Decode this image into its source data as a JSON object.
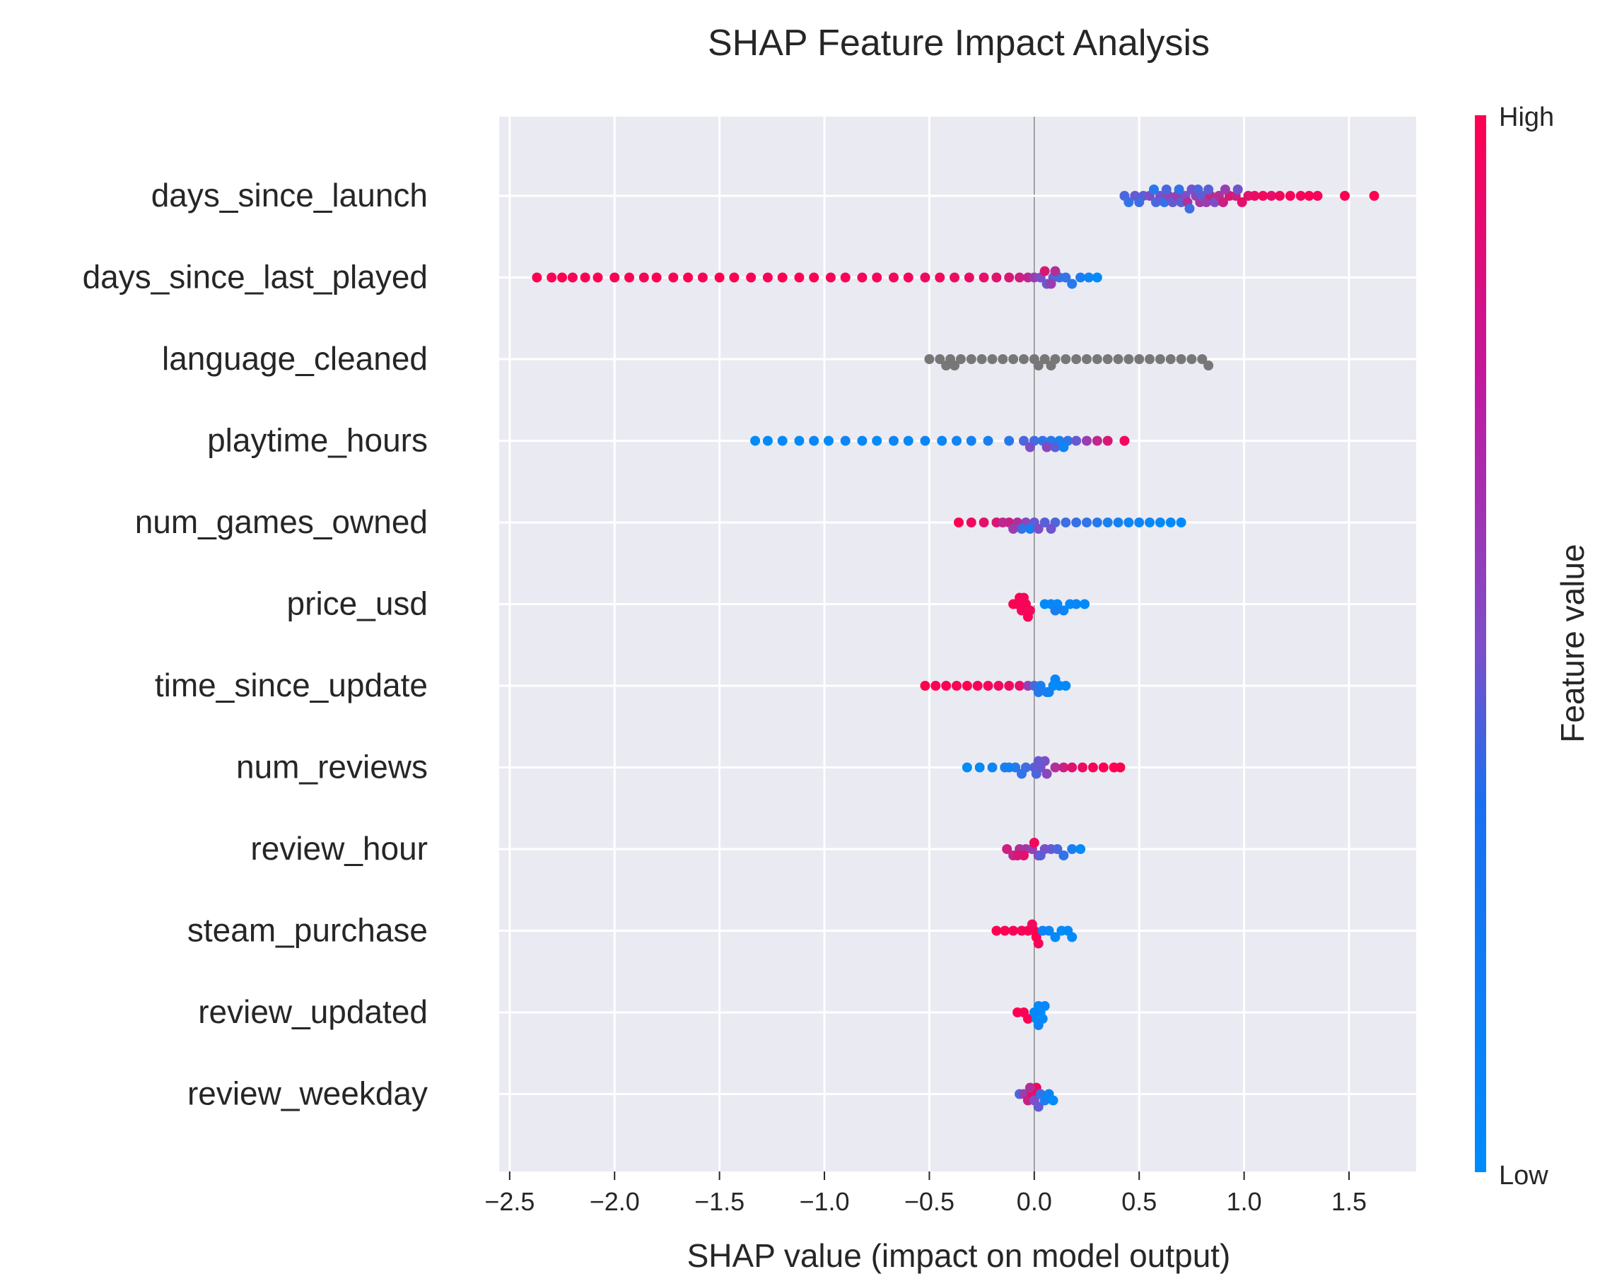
{
  "chart_data": {
    "type": "scatter",
    "subtype": "shap-beeswarm",
    "title": "SHAP Feature Impact Analysis",
    "xlabel": "SHAP value (impact on model output)",
    "xlim": [
      -2.55,
      1.82
    ],
    "xticks": [
      -2.5,
      -2.0,
      -1.5,
      -1.0,
      -0.5,
      0.0,
      0.5,
      1.0,
      1.5
    ],
    "xtick_labels": [
      "−2.5",
      "−2.0",
      "−1.5",
      "−1.0",
      "−0.5",
      "0.0",
      "0.5",
      "1.0",
      "1.5"
    ],
    "grid": true,
    "colorbar": {
      "label": "Feature value",
      "high_label": "High",
      "low_label": "Low",
      "low_color": "#008bfb",
      "mid_color": "#7e4ec8",
      "high_color": "#ff0051"
    },
    "missing_value_color": "#777777",
    "features": [
      {
        "name": "days_since_launch",
        "points": [
          [
            0.43,
            0.3
          ],
          [
            0.48,
            0.4
          ],
          [
            0.52,
            0.35
          ],
          [
            0.55,
            0.5
          ],
          [
            0.58,
            0.3
          ],
          [
            0.6,
            0.45
          ],
          [
            0.62,
            0.2
          ],
          [
            0.64,
            0.55
          ],
          [
            0.66,
            0.4
          ],
          [
            0.68,
            0.6
          ],
          [
            0.7,
            0.35
          ],
          [
            0.72,
            0.5
          ],
          [
            0.73,
            0.7
          ],
          [
            0.75,
            0.45
          ],
          [
            0.77,
            0.55
          ],
          [
            0.79,
            0.65
          ],
          [
            0.8,
            0.4
          ],
          [
            0.82,
            0.6
          ],
          [
            0.84,
            0.75
          ],
          [
            0.86,
            0.5
          ],
          [
            0.88,
            0.7
          ],
          [
            0.9,
            0.8
          ],
          [
            0.93,
            0.85
          ],
          [
            0.96,
            0.8
          ],
          [
            0.99,
            0.9
          ],
          [
            1.02,
            0.88
          ],
          [
            1.05,
            0.92
          ],
          [
            1.09,
            0.95
          ],
          [
            1.13,
            0.9
          ],
          [
            1.17,
            0.95
          ],
          [
            1.22,
            0.97
          ],
          [
            1.27,
            0.96
          ],
          [
            1.31,
            0.98
          ],
          [
            1.35,
            0.97
          ],
          [
            1.48,
            0.99
          ],
          [
            1.62,
            1.0
          ],
          [
            0.45,
            0.2
          ],
          [
            0.5,
            0.25
          ],
          [
            0.57,
            0.15
          ],
          [
            0.63,
            0.3
          ],
          [
            0.69,
            0.2
          ],
          [
            0.74,
            0.25
          ],
          [
            0.78,
            0.3
          ],
          [
            0.83,
            0.35
          ],
          [
            0.91,
            0.6
          ],
          [
            0.97,
            0.45
          ]
        ]
      },
      {
        "name": "days_since_last_played",
        "points": [
          [
            -2.37,
            1.0
          ],
          [
            -2.3,
            0.98
          ],
          [
            -2.25,
            1.0
          ],
          [
            -2.2,
            0.97
          ],
          [
            -2.14,
            0.99
          ],
          [
            -2.08,
            1.0
          ],
          [
            -2.0,
            0.98
          ],
          [
            -1.93,
            0.99
          ],
          [
            -1.86,
            0.97
          ],
          [
            -1.8,
            1.0
          ],
          [
            -1.72,
            0.98
          ],
          [
            -1.65,
            0.99
          ],
          [
            -1.58,
            0.97
          ],
          [
            -1.5,
            1.0
          ],
          [
            -1.43,
            0.99
          ],
          [
            -1.35,
            0.98
          ],
          [
            -1.27,
            0.97
          ],
          [
            -1.2,
            1.0
          ],
          [
            -1.12,
            0.98
          ],
          [
            -1.05,
            0.99
          ],
          [
            -0.97,
            0.97
          ],
          [
            -0.9,
            0.98
          ],
          [
            -0.82,
            0.96
          ],
          [
            -0.75,
            0.97
          ],
          [
            -0.67,
            0.95
          ],
          [
            -0.6,
            0.96
          ],
          [
            -0.52,
            0.94
          ],
          [
            -0.45,
            0.95
          ],
          [
            -0.38,
            0.93
          ],
          [
            -0.31,
            0.92
          ],
          [
            -0.24,
            0.9
          ],
          [
            -0.18,
            0.88
          ],
          [
            -0.12,
            0.85
          ],
          [
            -0.07,
            0.8
          ],
          [
            -0.03,
            0.75
          ],
          [
            0.0,
            0.6
          ],
          [
            0.03,
            0.5
          ],
          [
            0.06,
            0.4
          ],
          [
            0.09,
            0.35
          ],
          [
            0.12,
            0.25
          ],
          [
            0.15,
            0.2
          ],
          [
            0.18,
            0.15
          ],
          [
            0.22,
            0.1
          ],
          [
            0.26,
            0.05
          ],
          [
            0.3,
            0.0
          ],
          [
            0.08,
            0.6
          ],
          [
            0.1,
            0.7
          ],
          [
            0.05,
            0.85
          ]
        ]
      },
      {
        "name": "language_cleaned",
        "points": [
          [
            -0.5,
            null
          ],
          [
            -0.45,
            null
          ],
          [
            -0.4,
            null
          ],
          [
            -0.35,
            null
          ],
          [
            -0.3,
            null
          ],
          [
            -0.25,
            null
          ],
          [
            -0.2,
            null
          ],
          [
            -0.15,
            null
          ],
          [
            -0.1,
            null
          ],
          [
            -0.05,
            null
          ],
          [
            0.0,
            null
          ],
          [
            0.05,
            null
          ],
          [
            0.1,
            null
          ],
          [
            0.15,
            null
          ],
          [
            0.2,
            null
          ],
          [
            0.25,
            null
          ],
          [
            0.3,
            null
          ],
          [
            0.35,
            null
          ],
          [
            0.4,
            null
          ],
          [
            0.45,
            null
          ],
          [
            0.5,
            null
          ],
          [
            0.55,
            null
          ],
          [
            0.6,
            null
          ],
          [
            0.65,
            null
          ],
          [
            0.7,
            null
          ],
          [
            0.75,
            null
          ],
          [
            0.8,
            null
          ],
          [
            0.83,
            null
          ],
          [
            -0.42,
            null
          ],
          [
            -0.38,
            null
          ],
          [
            0.02,
            null
          ],
          [
            0.08,
            null
          ]
        ]
      },
      {
        "name": "playtime_hours",
        "points": [
          [
            -1.33,
            0.0
          ],
          [
            -1.27,
            0.0
          ],
          [
            -1.2,
            0.02
          ],
          [
            -1.12,
            0.0
          ],
          [
            -1.05,
            0.03
          ],
          [
            -0.98,
            0.0
          ],
          [
            -0.9,
            0.05
          ],
          [
            -0.82,
            0.02
          ],
          [
            -0.75,
            0.0
          ],
          [
            -0.67,
            0.04
          ],
          [
            -0.6,
            0.02
          ],
          [
            -0.52,
            0.05
          ],
          [
            -0.44,
            0.03
          ],
          [
            -0.37,
            0.06
          ],
          [
            -0.3,
            0.08
          ],
          [
            -0.22,
            0.1
          ],
          [
            -0.12,
            0.15
          ],
          [
            -0.05,
            0.3
          ],
          [
            0.0,
            0.25
          ],
          [
            0.04,
            0.2
          ],
          [
            0.08,
            0.15
          ],
          [
            0.12,
            0.1
          ],
          [
            0.16,
            0.2
          ],
          [
            0.2,
            0.4
          ],
          [
            0.25,
            0.6
          ],
          [
            0.3,
            0.75
          ],
          [
            0.35,
            0.85
          ],
          [
            0.43,
            0.95
          ],
          [
            0.06,
            0.55
          ],
          [
            0.1,
            0.35
          ],
          [
            -0.02,
            0.5
          ],
          [
            0.14,
            0.05
          ]
        ]
      },
      {
        "name": "num_games_owned",
        "points": [
          [
            -0.36,
            1.0
          ],
          [
            -0.3,
            0.95
          ],
          [
            -0.24,
            0.9
          ],
          [
            -0.18,
            0.85
          ],
          [
            -0.12,
            0.8
          ],
          [
            -0.08,
            0.7
          ],
          [
            -0.04,
            0.55
          ],
          [
            0.0,
            0.4
          ],
          [
            0.05,
            0.35
          ],
          [
            0.1,
            0.3
          ],
          [
            0.15,
            0.25
          ],
          [
            0.2,
            0.22
          ],
          [
            0.25,
            0.2
          ],
          [
            0.3,
            0.15
          ],
          [
            0.35,
            0.1
          ],
          [
            0.4,
            0.08
          ],
          [
            0.45,
            0.05
          ],
          [
            0.5,
            0.04
          ],
          [
            0.55,
            0.03
          ],
          [
            0.6,
            0.02
          ],
          [
            0.65,
            0.01
          ],
          [
            0.7,
            0.0
          ],
          [
            -0.06,
            0.2
          ],
          [
            -0.02,
            0.1
          ],
          [
            -0.1,
            0.6
          ],
          [
            0.02,
            0.5
          ],
          [
            0.08,
            0.45
          ],
          [
            -0.15,
            0.75
          ]
        ]
      },
      {
        "name": "price_usd",
        "points": [
          [
            -0.1,
            1.0
          ],
          [
            -0.08,
            0.98
          ],
          [
            -0.06,
            0.97
          ],
          [
            -0.04,
            0.99
          ],
          [
            -0.02,
            0.95
          ],
          [
            -0.07,
            1.0
          ],
          [
            -0.05,
            0.96
          ],
          [
            -0.03,
            0.98
          ],
          [
            0.05,
            0.0
          ],
          [
            0.08,
            0.02
          ],
          [
            0.11,
            0.0
          ],
          [
            0.14,
            0.05
          ],
          [
            0.17,
            0.0
          ],
          [
            0.2,
            0.03
          ],
          [
            0.24,
            0.0
          ],
          [
            0.1,
            0.1
          ]
        ]
      },
      {
        "name": "time_since_update",
        "points": [
          [
            -0.52,
            1.0
          ],
          [
            -0.47,
            0.98
          ],
          [
            -0.42,
            0.99
          ],
          [
            -0.37,
            0.97
          ],
          [
            -0.32,
            1.0
          ],
          [
            -0.27,
            0.98
          ],
          [
            -0.22,
            0.96
          ],
          [
            -0.17,
            0.95
          ],
          [
            -0.12,
            0.93
          ],
          [
            -0.07,
            0.9
          ],
          [
            -0.03,
            0.6
          ],
          [
            0.0,
            0.3
          ],
          [
            0.03,
            0.1
          ],
          [
            0.06,
            0.05
          ],
          [
            0.09,
            0.0
          ],
          [
            0.12,
            0.0
          ],
          [
            0.15,
            0.02
          ],
          [
            0.02,
            0.15
          ],
          [
            0.07,
            0.08
          ],
          [
            0.1,
            0.03
          ]
        ]
      },
      {
        "name": "num_reviews",
        "points": [
          [
            -0.32,
            0.0
          ],
          [
            -0.26,
            0.02
          ],
          [
            -0.2,
            0.05
          ],
          [
            -0.14,
            0.1
          ],
          [
            -0.09,
            0.15
          ],
          [
            -0.04,
            0.25
          ],
          [
            0.0,
            0.35
          ],
          [
            0.03,
            0.45
          ],
          [
            0.06,
            0.55
          ],
          [
            0.1,
            0.7
          ],
          [
            0.14,
            0.8
          ],
          [
            0.18,
            0.88
          ],
          [
            0.23,
            0.93
          ],
          [
            0.28,
            0.96
          ],
          [
            0.33,
            0.98
          ],
          [
            0.38,
            1.0
          ],
          [
            0.41,
            1.0
          ],
          [
            -0.06,
            0.2
          ],
          [
            0.01,
            0.3
          ],
          [
            0.05,
            0.5
          ],
          [
            -0.12,
            0.08
          ],
          [
            0.02,
            0.4
          ]
        ]
      },
      {
        "name": "review_hour",
        "points": [
          [
            -0.13,
            0.8
          ],
          [
            -0.1,
            0.75
          ],
          [
            -0.07,
            0.7
          ],
          [
            -0.04,
            0.65
          ],
          [
            -0.01,
            0.6
          ],
          [
            0.02,
            0.55
          ],
          [
            0.05,
            0.5
          ],
          [
            0.08,
            0.4
          ],
          [
            0.11,
            0.3
          ],
          [
            0.14,
            0.2
          ],
          [
            0.18,
            0.1
          ],
          [
            0.22,
            0.0
          ],
          [
            -0.05,
            0.9
          ],
          [
            0.0,
            0.95
          ],
          [
            0.03,
            0.35
          ],
          [
            -0.08,
            0.85
          ]
        ]
      },
      {
        "name": "steam_purchase",
        "points": [
          [
            -0.18,
            1.0
          ],
          [
            -0.14,
            0.99
          ],
          [
            -0.1,
            0.98
          ],
          [
            -0.06,
            0.97
          ],
          [
            -0.03,
            0.98
          ],
          [
            0.0,
            0.99
          ],
          [
            0.01,
            1.0
          ],
          [
            0.04,
            0.05
          ],
          [
            0.07,
            0.03
          ],
          [
            0.1,
            0.02
          ],
          [
            0.13,
            0.0
          ],
          [
            0.16,
            0.01
          ],
          [
            0.18,
            0.0
          ],
          [
            -0.01,
            0.95
          ],
          [
            0.02,
            0.97
          ]
        ]
      },
      {
        "name": "review_updated",
        "points": [
          [
            -0.08,
            1.0
          ],
          [
            -0.05,
            0.98
          ],
          [
            -0.03,
            0.99
          ],
          [
            0.0,
            0.0
          ],
          [
            0.01,
            0.02
          ],
          [
            0.02,
            0.0
          ],
          [
            0.03,
            0.01
          ],
          [
            0.04,
            0.0
          ],
          [
            0.05,
            0.03
          ],
          [
            0.02,
            0.05
          ]
        ]
      },
      {
        "name": "review_weekday",
        "points": [
          [
            -0.07,
            0.3
          ],
          [
            -0.05,
            0.6
          ],
          [
            -0.03,
            0.8
          ],
          [
            -0.01,
            0.9
          ],
          [
            0.0,
            0.5
          ],
          [
            0.01,
            0.95
          ],
          [
            0.02,
            0.4
          ],
          [
            0.03,
            0.2
          ],
          [
            0.05,
            0.1
          ],
          [
            0.07,
            0.05
          ],
          [
            0.09,
            0.0
          ],
          [
            -0.02,
            0.7
          ]
        ]
      }
    ]
  }
}
